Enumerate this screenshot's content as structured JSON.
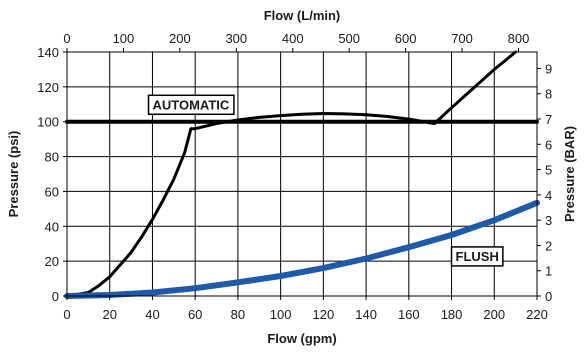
{
  "chart_data": {
    "type": "line",
    "x_bottom": {
      "label": "Flow (gpm)",
      "range": [
        0,
        220
      ],
      "ticks": [
        0,
        20,
        40,
        60,
        80,
        100,
        120,
        140,
        160,
        180,
        200,
        220
      ]
    },
    "x_top": {
      "label": "Flow (L/min)",
      "range": [
        0,
        832.8
      ],
      "ticks": [
        0,
        100,
        200,
        300,
        400,
        500,
        600,
        700,
        800
      ]
    },
    "y_left": {
      "label": "Pressure (psi)",
      "range": [
        0,
        140
      ],
      "ticks": [
        0,
        20,
        40,
        60,
        80,
        100,
        120,
        140
      ]
    },
    "y_right": {
      "label": "Pressure (BAR)",
      "range": [
        0,
        9.65
      ],
      "ticks": [
        0,
        1,
        2,
        3,
        4,
        5,
        6,
        7,
        8,
        9
      ]
    },
    "grid": true,
    "series": [
      {
        "name": "AUTOMATIC",
        "color": "#000000",
        "points": [
          [
            0,
            0
          ],
          [
            5,
            1
          ],
          [
            10,
            2
          ],
          [
            15,
            6
          ],
          [
            20,
            11
          ],
          [
            25,
            18
          ],
          [
            30,
            25
          ],
          [
            35,
            34
          ],
          [
            40,
            44
          ],
          [
            45,
            55
          ],
          [
            50,
            67
          ],
          [
            55,
            82
          ],
          [
            58,
            96
          ],
          [
            60,
            96
          ],
          [
            70,
            99
          ],
          [
            80,
            101
          ],
          [
            90,
            102.5
          ],
          [
            100,
            103.5
          ],
          [
            110,
            104.3
          ],
          [
            120,
            104.7
          ],
          [
            130,
            104.5
          ],
          [
            140,
            104
          ],
          [
            150,
            103
          ],
          [
            160,
            101.5
          ],
          [
            172,
            99
          ],
          [
            180,
            108
          ],
          [
            190,
            119
          ],
          [
            200,
            130
          ],
          [
            210,
            140
          ]
        ]
      },
      {
        "name": "FLUSH",
        "color": "#1e5aa8",
        "points": [
          [
            0,
            0
          ],
          [
            20,
            0.6
          ],
          [
            40,
            2
          ],
          [
            60,
            4.5
          ],
          [
            80,
            7.8
          ],
          [
            100,
            11.5
          ],
          [
            120,
            16
          ],
          [
            140,
            21.5
          ],
          [
            160,
            28
          ],
          [
            180,
            35
          ],
          [
            200,
            43.5
          ],
          [
            220,
            53.5
          ]
        ]
      },
      {
        "name": "",
        "color": "#000000",
        "points": [
          [
            0,
            100
          ],
          [
            220,
            100
          ]
        ]
      }
    ],
    "annotations": [
      {
        "text": "AUTOMATIC",
        "x": 58,
        "y": 110
      },
      {
        "text": "FLUSH",
        "x": 192,
        "y": 23
      }
    ]
  }
}
